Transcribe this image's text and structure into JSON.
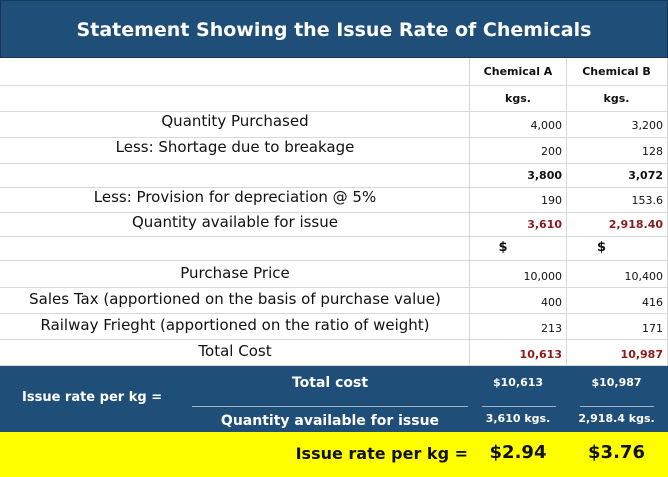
{
  "title": "Statement Showing the Issue Rate of Chemicals",
  "columns": {
    "a": "Chemical A",
    "b": "Chemical B"
  },
  "units": {
    "a": "kgs.",
    "b": "kgs."
  },
  "rows": {
    "quantity_purchased": {
      "label": "Quantity Purchased",
      "a": "4,000",
      "b": "3,200"
    },
    "shortage": {
      "label": "Less: Shortage due to breakage",
      "a": "200",
      "b": "128"
    },
    "subtotal": {
      "label": "",
      "a": "3,800",
      "b": "3,072"
    },
    "depreciation": {
      "label": "Less: Provision for depreciation @ 5%",
      "a": "190",
      "b": "153.6"
    },
    "available": {
      "label": "Quantity available for issue",
      "a": "3,610",
      "b": "2,918.40"
    },
    "currency": {
      "a": "$",
      "b": "$"
    },
    "purchase_price": {
      "label": "Purchase Price",
      "a": "10,000",
      "b": "10,400"
    },
    "sales_tax": {
      "label": "Sales Tax (apportioned on the basis of purchase value)",
      "a": "400",
      "b": "416"
    },
    "railway": {
      "label": "Railway Frieght (apportioned on the ratio of weight)",
      "a": "213",
      "b": "171"
    },
    "total_cost": {
      "label": "Total Cost",
      "a": "10,613",
      "b": "10,987"
    }
  },
  "formula": {
    "label": "Issue rate per kg =",
    "numerator": "Total cost",
    "denominator": "Quantity available for issue",
    "num_a": "$10,613",
    "num_b": "$10,987",
    "den_a": "3,610 kgs.",
    "den_b": "2,918.4 kgs."
  },
  "result": {
    "label": "Issue rate per kg =",
    "a": "$2.94",
    "b": "$3.76"
  },
  "colors": {
    "header_bg": "#1f4e79",
    "highlight_bg": "#ffff00",
    "emphasis_red": "#8b1a1a"
  }
}
